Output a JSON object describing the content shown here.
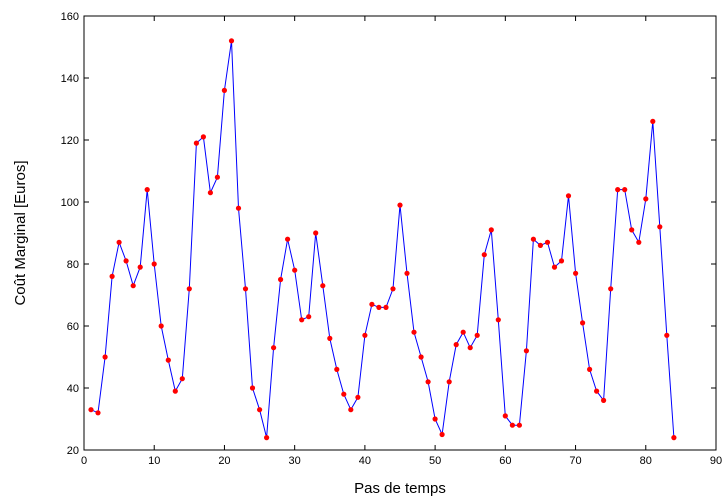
{
  "chart_data": {
    "type": "line",
    "xlabel": "Pas de temps",
    "ylabel": "Coût Marginal [Euros]",
    "xlim": [
      0,
      90
    ],
    "ylim": [
      20,
      160
    ],
    "xticks": [
      0,
      10,
      20,
      30,
      40,
      50,
      60,
      70,
      80,
      90
    ],
    "yticks": [
      20,
      40,
      60,
      80,
      100,
      120,
      140,
      160
    ],
    "grid": false,
    "line_color": "#0000ff",
    "marker_color": "#ff0000",
    "series": [
      {
        "x": [
          1,
          2,
          3,
          4,
          5,
          6,
          7,
          8,
          9,
          10,
          11,
          12,
          13,
          14,
          15,
          16,
          17,
          18,
          19,
          20,
          21,
          22,
          23,
          24,
          25,
          26,
          27,
          28,
          29,
          30,
          31,
          32,
          33,
          34,
          35,
          36,
          37,
          38,
          39,
          40,
          41,
          42,
          43,
          44,
          45,
          46,
          47,
          48,
          49,
          50,
          51,
          52,
          53,
          54,
          55,
          56,
          57,
          58,
          59,
          60,
          61,
          62,
          63,
          64,
          65,
          66,
          67,
          68,
          69,
          70,
          71,
          72,
          73,
          74,
          75,
          76,
          77,
          78,
          79,
          80,
          81,
          82,
          83,
          84
        ],
        "values": [
          33,
          32,
          50,
          76,
          87,
          81,
          73,
          79,
          104,
          80,
          60,
          49,
          39,
          43,
          72,
          119,
          121,
          103,
          108,
          136,
          152,
          98,
          72,
          40,
          33,
          24,
          53,
          75,
          88,
          78,
          62,
          63,
          90,
          73,
          56,
          46,
          38,
          33,
          37,
          57,
          67,
          66,
          66,
          72,
          99,
          77,
          58,
          50,
          42,
          30,
          25,
          42,
          54,
          58,
          53,
          57,
          83,
          91,
          62,
          31,
          28,
          28,
          52,
          88,
          86,
          87,
          79,
          81,
          102,
          77,
          61,
          46,
          39,
          36,
          72,
          104,
          104,
          91,
          87,
          101,
          126,
          92,
          57,
          24
        ]
      }
    ]
  }
}
